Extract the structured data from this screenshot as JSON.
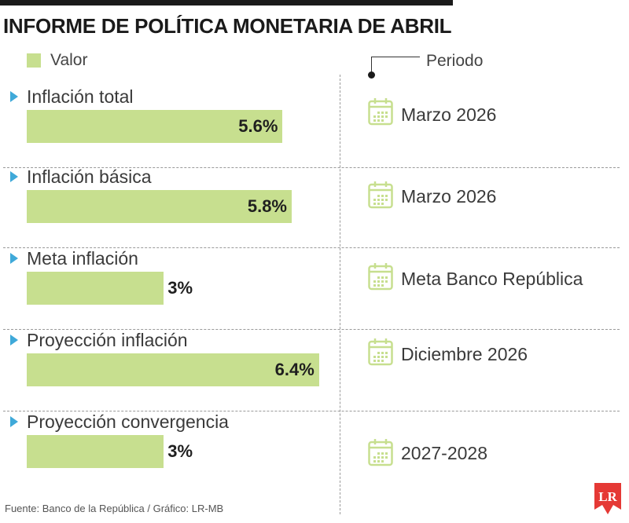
{
  "header": {
    "title": "INFORME DE POLÍTICA MONETARIA DE ABRIL"
  },
  "legend": {
    "value_label": "Valor",
    "period_label": "Periodo"
  },
  "colors": {
    "bar": "#c7df8f",
    "marker": "#3fa9d9",
    "logo": "#e53935"
  },
  "chart_data": {
    "type": "bar",
    "orientation": "horizontal",
    "title": "INFORME DE POLÍTICA MONETARIA DE ABRIL",
    "categories": [
      "Inflación total",
      "Inflación básica",
      "Meta inflación",
      "Proyección inflación",
      "Proyección convergencia"
    ],
    "values": [
      5.6,
      5.8,
      3,
      6.4,
      3
    ],
    "value_labels": [
      "5.6%",
      "5.8%",
      "3%",
      "6.4%",
      "3%"
    ],
    "periods": [
      "Marzo 2026",
      "Marzo 2026",
      "Meta Banco República",
      "Diciembre 2026",
      "2027-2028"
    ],
    "unit": "%",
    "legend": [
      "Valor",
      "Periodo"
    ],
    "grid": false
  },
  "footer": {
    "source": "Fuente: Banco de la República / Gráfico: LR-MB",
    "logo_text": "LR"
  },
  "icons": {
    "calendar": "calendar-icon",
    "marker": "triangle-marker-icon"
  }
}
